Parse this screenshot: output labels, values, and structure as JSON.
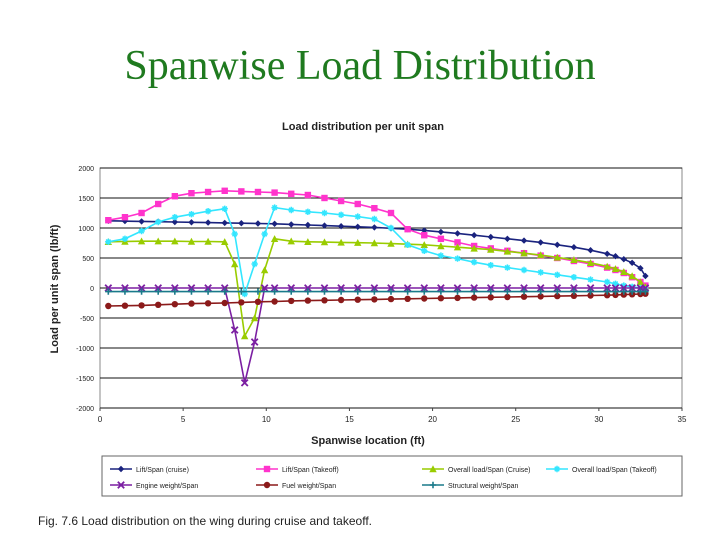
{
  "slide": {
    "title": "Spanwise Load Distribution",
    "caption": "Fig. 7.6 Load distribution on the wing during cruise and takeoff."
  },
  "chart_data": {
    "type": "line",
    "title": "Load distribution per unit span",
    "xlabel": "Spanwise location (ft)",
    "ylabel": "Load per unit span (lb/ft)",
    "xlim": [
      0,
      35
    ],
    "ylim": [
      -2000,
      2000
    ],
    "xticks": [
      0,
      5,
      10,
      15,
      20,
      25,
      30,
      35
    ],
    "yticks": [
      -2000,
      -1500,
      -1000,
      -500,
      0,
      500,
      1000,
      1500,
      2000
    ],
    "grid": "horizontal",
    "legend_position": "bottom",
    "series": [
      {
        "name": "Lift/Span (cruise)",
        "color": "#1a237e",
        "marker": "diamond",
        "x": [
          0.5,
          1.5,
          2.5,
          3.5,
          4.5,
          5.5,
          6.5,
          7.5,
          8.5,
          9.5,
          10.5,
          11.5,
          12.5,
          13.5,
          14.5,
          15.5,
          16.5,
          17.5,
          18.5,
          19.5,
          20.5,
          21.5,
          22.5,
          23.5,
          24.5,
          25.5,
          26.5,
          27.5,
          28.5,
          29.5,
          30.5,
          31.0,
          31.5,
          32.0,
          32.5,
          32.8
        ],
        "y": [
          1120,
          1115,
          1110,
          1105,
          1100,
          1095,
          1090,
          1085,
          1080,
          1075,
          1070,
          1060,
          1050,
          1040,
          1030,
          1020,
          1010,
          995,
          980,
          960,
          935,
          910,
          880,
          850,
          820,
          790,
          760,
          720,
          680,
          630,
          570,
          530,
          480,
          420,
          330,
          200
        ]
      },
      {
        "name": "Lift/Span (Takeoff)",
        "color": "#ff33cc",
        "marker": "square",
        "x": [
          0.5,
          1.5,
          2.5,
          3.5,
          4.5,
          5.5,
          6.5,
          7.5,
          8.5,
          9.5,
          10.5,
          11.5,
          12.5,
          13.5,
          14.5,
          15.5,
          16.5,
          17.5,
          18.5,
          19.5,
          20.5,
          21.5,
          22.5,
          23.5,
          24.5,
          25.5,
          26.5,
          27.5,
          28.5,
          29.5,
          30.5,
          31.0,
          31.5,
          32.0,
          32.5,
          32.8
        ],
        "y": [
          1130,
          1180,
          1250,
          1400,
          1530,
          1580,
          1600,
          1620,
          1610,
          1600,
          1590,
          1570,
          1550,
          1500,
          1450,
          1400,
          1330,
          1250,
          980,
          880,
          820,
          760,
          700,
          660,
          620,
          580,
          540,
          500,
          450,
          400,
          340,
          300,
          250,
          180,
          100,
          40
        ]
      },
      {
        "name": "Overall load/Span (Cruise)",
        "color": "#99cc00",
        "marker": "triangle",
        "x": [
          0.5,
          1.5,
          2.5,
          3.5,
          4.5,
          5.5,
          6.5,
          7.5,
          8.1,
          8.7,
          9.3,
          9.9,
          10.5,
          11.5,
          12.5,
          13.5,
          14.5,
          15.5,
          16.5,
          17.5,
          18.5,
          19.5,
          20.5,
          21.5,
          22.5,
          23.5,
          24.5,
          25.5,
          26.5,
          27.5,
          28.5,
          29.5,
          30.5,
          31.0,
          31.5,
          32.0,
          32.5,
          32.8
        ],
        "y": [
          770,
          775,
          780,
          780,
          780,
          775,
          775,
          770,
          400,
          -800,
          -500,
          300,
          820,
          780,
          770,
          765,
          760,
          755,
          750,
          740,
          730,
          720,
          700,
          680,
          660,
          640,
          610,
          580,
          550,
          510,
          470,
          420,
          360,
          320,
          270,
          200,
          100,
          20
        ]
      },
      {
        "name": "Overall load/Span (Takeoff)",
        "color": "#33e6ff",
        "marker": "star",
        "x": [
          0.5,
          1.5,
          2.5,
          3.5,
          4.5,
          5.5,
          6.5,
          7.5,
          8.1,
          8.7,
          9.3,
          9.9,
          10.5,
          11.5,
          12.5,
          13.5,
          14.5,
          15.5,
          16.5,
          17.5,
          18.5,
          19.5,
          20.5,
          21.5,
          22.5,
          23.5,
          24.5,
          25.5,
          26.5,
          27.5,
          28.5,
          29.5,
          30.5,
          31.0,
          31.5,
          32.0,
          32.5,
          32.8
        ],
        "y": [
          770,
          820,
          950,
          1100,
          1180,
          1230,
          1280,
          1320,
          900,
          -100,
          400,
          900,
          1340,
          1300,
          1270,
          1250,
          1220,
          1190,
          1150,
          1000,
          720,
          620,
          540,
          490,
          430,
          380,
          340,
          300,
          260,
          220,
          180,
          140,
          100,
          70,
          40,
          20,
          0,
          -20
        ]
      },
      {
        "name": "Engine weight/Span",
        "color": "#7b1fa2",
        "marker": "x",
        "x": [
          0.5,
          1.5,
          2.5,
          3.5,
          4.5,
          5.5,
          6.5,
          7.5,
          8.1,
          8.7,
          9.3,
          9.9,
          10.5,
          11.5,
          12.5,
          13.5,
          14.5,
          15.5,
          16.5,
          17.5,
          18.5,
          19.5,
          20.5,
          21.5,
          22.5,
          23.5,
          24.5,
          25.5,
          26.5,
          27.5,
          28.5,
          29.5,
          30.5,
          31.0,
          31.5,
          32.0,
          32.5,
          32.8
        ],
        "y": [
          0,
          0,
          0,
          0,
          0,
          0,
          0,
          0,
          -700,
          -1580,
          -900,
          0,
          0,
          0,
          0,
          0,
          0,
          0,
          0,
          0,
          0,
          0,
          0,
          0,
          0,
          0,
          0,
          0,
          0,
          0,
          0,
          0,
          0,
          0,
          0,
          0,
          0,
          0
        ]
      },
      {
        "name": "Fuel weight/Span",
        "color": "#8b1a1a",
        "marker": "circle",
        "x": [
          0.5,
          1.5,
          2.5,
          3.5,
          4.5,
          5.5,
          6.5,
          7.5,
          8.5,
          9.5,
          10.5,
          11.5,
          12.5,
          13.5,
          14.5,
          15.5,
          16.5,
          17.5,
          18.5,
          19.5,
          20.5,
          21.5,
          22.5,
          23.5,
          24.5,
          25.5,
          26.5,
          27.5,
          28.5,
          29.5,
          30.5,
          31.0,
          31.5,
          32.0,
          32.5,
          32.8
        ],
        "y": [
          -300,
          -295,
          -290,
          -280,
          -270,
          -260,
          -255,
          -250,
          -240,
          -230,
          -225,
          -215,
          -210,
          -205,
          -200,
          -195,
          -190,
          -185,
          -180,
          -175,
          -170,
          -165,
          -160,
          -155,
          -150,
          -145,
          -140,
          -135,
          -130,
          -125,
          -120,
          -115,
          -110,
          -105,
          -100,
          -95
        ]
      },
      {
        "name": "Structural weight/Span",
        "color": "#1a7a8a",
        "marker": "plus",
        "x": [
          0.5,
          1.5,
          2.5,
          3.5,
          4.5,
          5.5,
          6.5,
          7.5,
          8.5,
          9.5,
          10.5,
          11.5,
          12.5,
          13.5,
          14.5,
          15.5,
          16.5,
          17.5,
          18.5,
          19.5,
          20.5,
          21.5,
          22.5,
          23.5,
          24.5,
          25.5,
          26.5,
          27.5,
          28.5,
          29.5,
          30.5,
          31.0,
          31.5,
          32.0,
          32.5,
          32.8
        ],
        "y": [
          -60,
          -60,
          -60,
          -60,
          -60,
          -60,
          -60,
          -60,
          -60,
          -60,
          -60,
          -60,
          -60,
          -60,
          -60,
          -60,
          -60,
          -60,
          -60,
          -60,
          -60,
          -60,
          -60,
          -60,
          -60,
          -60,
          -60,
          -60,
          -60,
          -60,
          -60,
          -60,
          -60,
          -60,
          -60,
          -60
        ]
      }
    ]
  }
}
